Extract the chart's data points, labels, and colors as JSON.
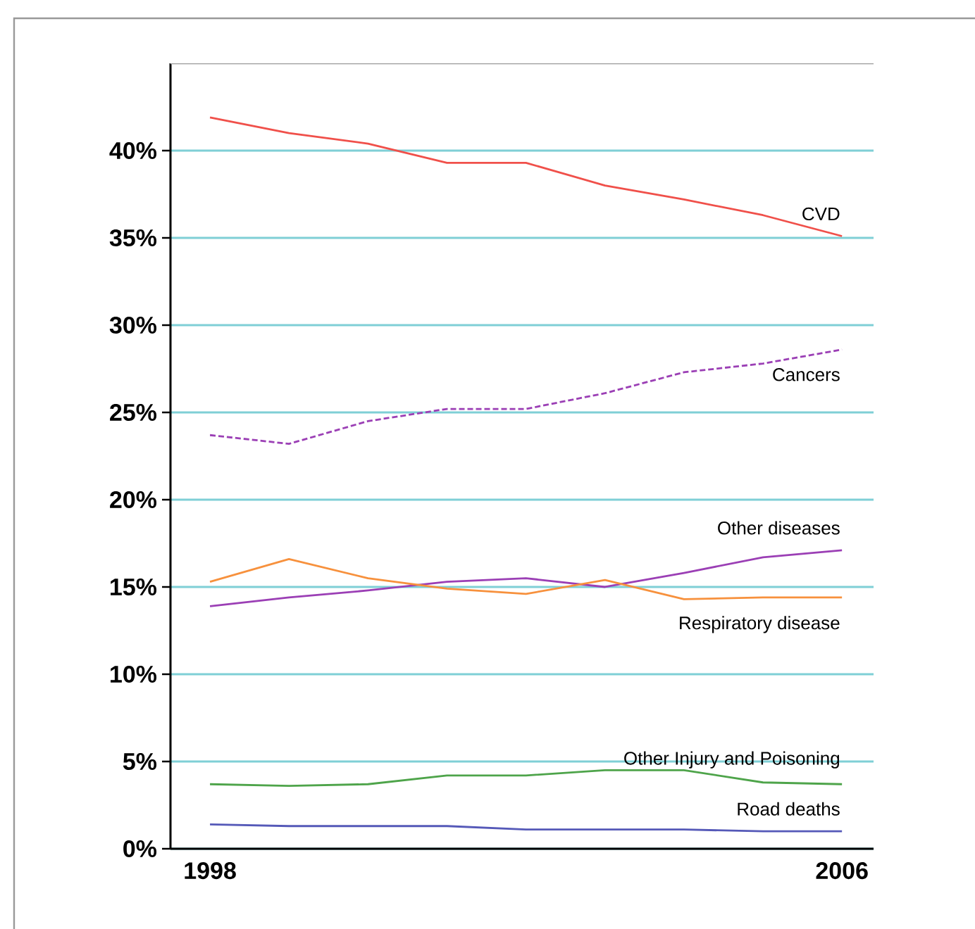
{
  "chart_data": {
    "type": "line",
    "x": [
      1998,
      1999,
      2000,
      2001,
      2002,
      2003,
      2004,
      2005,
      2006
    ],
    "xlim": [
      1997.5,
      2006.4
    ],
    "xticks": [
      1998,
      2006
    ],
    "ylim": [
      0,
      45
    ],
    "yticks": [
      {
        "value": 0,
        "label": "0%"
      },
      {
        "value": 5,
        "label": "5%"
      },
      {
        "value": 10,
        "label": "10%"
      },
      {
        "value": 15,
        "label": "15%"
      },
      {
        "value": 20,
        "label": "20%"
      },
      {
        "value": 25,
        "label": "25%"
      },
      {
        "value": 30,
        "label": "30%"
      },
      {
        "value": 35,
        "label": "35%"
      },
      {
        "value": 40,
        "label": "40%"
      }
    ],
    "grid": "y",
    "legend": false,
    "marker": "none",
    "series": [
      {
        "name": "CVD",
        "color": "#f0504a",
        "values": [
          41.9,
          41.0,
          40.4,
          39.3,
          39.3,
          38.0,
          37.2,
          36.3,
          35.1
        ]
      },
      {
        "name": "Cancers",
        "color": "#9b3fb5",
        "line_style": "dashed",
        "values": [
          23.7,
          23.2,
          24.5,
          25.2,
          25.2,
          26.1,
          27.3,
          27.8,
          28.6
        ]
      },
      {
        "name": "Other diseases",
        "color": "#9b3fb5",
        "values": [
          13.9,
          14.4,
          14.8,
          15.3,
          15.5,
          15.0,
          15.8,
          16.7,
          17.1
        ]
      },
      {
        "name": "Respiratory disease",
        "color": "#f7913d",
        "values": [
          15.3,
          16.6,
          15.5,
          14.9,
          14.6,
          15.4,
          14.3,
          14.4,
          14.4
        ]
      },
      {
        "name": "Other Injury and Poisoning",
        "color": "#4ea44a",
        "values": [
          3.7,
          3.6,
          3.7,
          4.2,
          4.2,
          4.5,
          4.5,
          3.8,
          3.7
        ]
      },
      {
        "name": "Road deaths",
        "color": "#5559b8",
        "values": [
          1.4,
          1.3,
          1.3,
          1.3,
          1.1,
          1.1,
          1.1,
          1.0,
          1.0
        ]
      }
    ]
  }
}
